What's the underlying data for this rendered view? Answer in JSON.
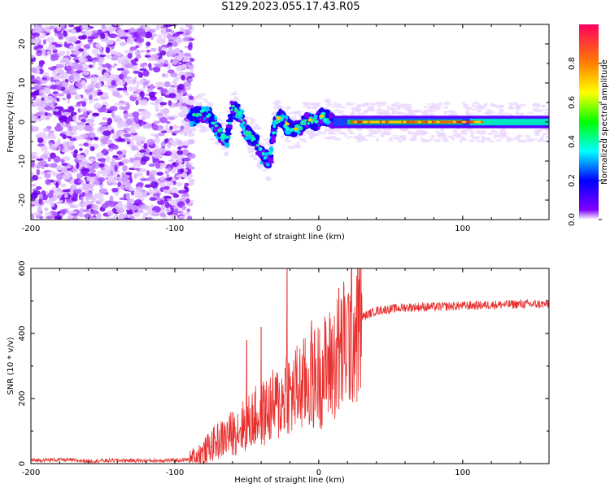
{
  "title": "S129.2023.055.17.43.R05",
  "chart_data": [
    {
      "type": "heatmap",
      "xlabel": "Height of straight line (km)",
      "ylabel": "Frequency (Hz)",
      "xlim": [
        -200,
        160
      ],
      "ylim": [
        -25,
        25
      ],
      "xticks": [
        -200,
        -100,
        0,
        100
      ],
      "xtick_labels": [
        "-200",
        "-100",
        "0",
        "100"
      ],
      "yticks": [
        -20,
        -10,
        0,
        10,
        20
      ],
      "ytick_labels": [
        "-20",
        "-10",
        "0",
        "10",
        "20"
      ],
      "colorbar": {
        "label": "Normalized spectral amplitude",
        "range": [
          0,
          1
        ],
        "ticks": [
          0,
          0.2,
          0.4,
          0.6,
          0.8
        ],
        "tick_labels": [
          "0.0",
          "0.2",
          "0.4",
          "0.6",
          "0.8"
        ]
      },
      "grid": false,
      "ridge": {
        "x": [
          -88,
          -82,
          -76,
          -70,
          -64,
          -60,
          -55,
          -50,
          -46,
          -42,
          -38,
          -34,
          -30,
          -26,
          -22,
          -18,
          -14,
          -10,
          -6,
          -2,
          2,
          6,
          10,
          20,
          40,
          60,
          80,
          100,
          120,
          140,
          160
        ],
        "y": [
          1,
          2.5,
          1.5,
          -2.5,
          -5,
          4,
          2,
          -3,
          -4,
          -6,
          -9,
          -10,
          0.5,
          1,
          -1,
          -2,
          -1.5,
          0,
          0.5,
          0,
          1.5,
          0.8,
          0,
          0,
          0,
          0,
          0,
          0,
          0,
          0,
          0
        ]
      }
    },
    {
      "type": "line",
      "xlabel": "Height of straight line (km)",
      "ylabel": "SNR (10 * v/v)",
      "xlim": [
        -200,
        160
      ],
      "ylim": [
        0,
        600
      ],
      "xticks": [
        -200,
        -100,
        0,
        100
      ],
      "xtick_labels": [
        "-200",
        "-100",
        "0",
        "100"
      ],
      "yticks": [
        0,
        200,
        400,
        600
      ],
      "ytick_labels": [
        "0",
        "200",
        "400",
        "600"
      ],
      "grid": false,
      "color": "#e8312f",
      "series": [
        {
          "x": [
            -200,
            -180,
            -160,
            -140,
            -120,
            -100,
            -90,
            -85,
            -80,
            -75,
            -70,
            -65,
            -60,
            -55,
            -50,
            -45,
            -40,
            -35,
            -30,
            -25,
            -22,
            -20,
            -15,
            -10,
            -5,
            0,
            5,
            10,
            15,
            20,
            25,
            30,
            35,
            40,
            50,
            60,
            80,
            100,
            120,
            140,
            160
          ],
          "y": [
            10,
            12,
            8,
            10,
            9,
            10,
            12,
            25,
            35,
            55,
            70,
            80,
            95,
            110,
            120,
            140,
            150,
            165,
            180,
            190,
            250,
            200,
            230,
            240,
            260,
            270,
            290,
            310,
            340,
            380,
            420,
            450,
            460,
            470,
            475,
            480,
            482,
            485,
            488,
            490,
            490
          ]
        }
      ],
      "peaks": [
        {
          "x": -22,
          "y": 600
        },
        {
          "x": 14,
          "y": 540
        },
        {
          "x": -5,
          "y": 440
        },
        {
          "x": -50,
          "y": 380
        },
        {
          "x": -40,
          "y": 420
        }
      ]
    }
  ]
}
